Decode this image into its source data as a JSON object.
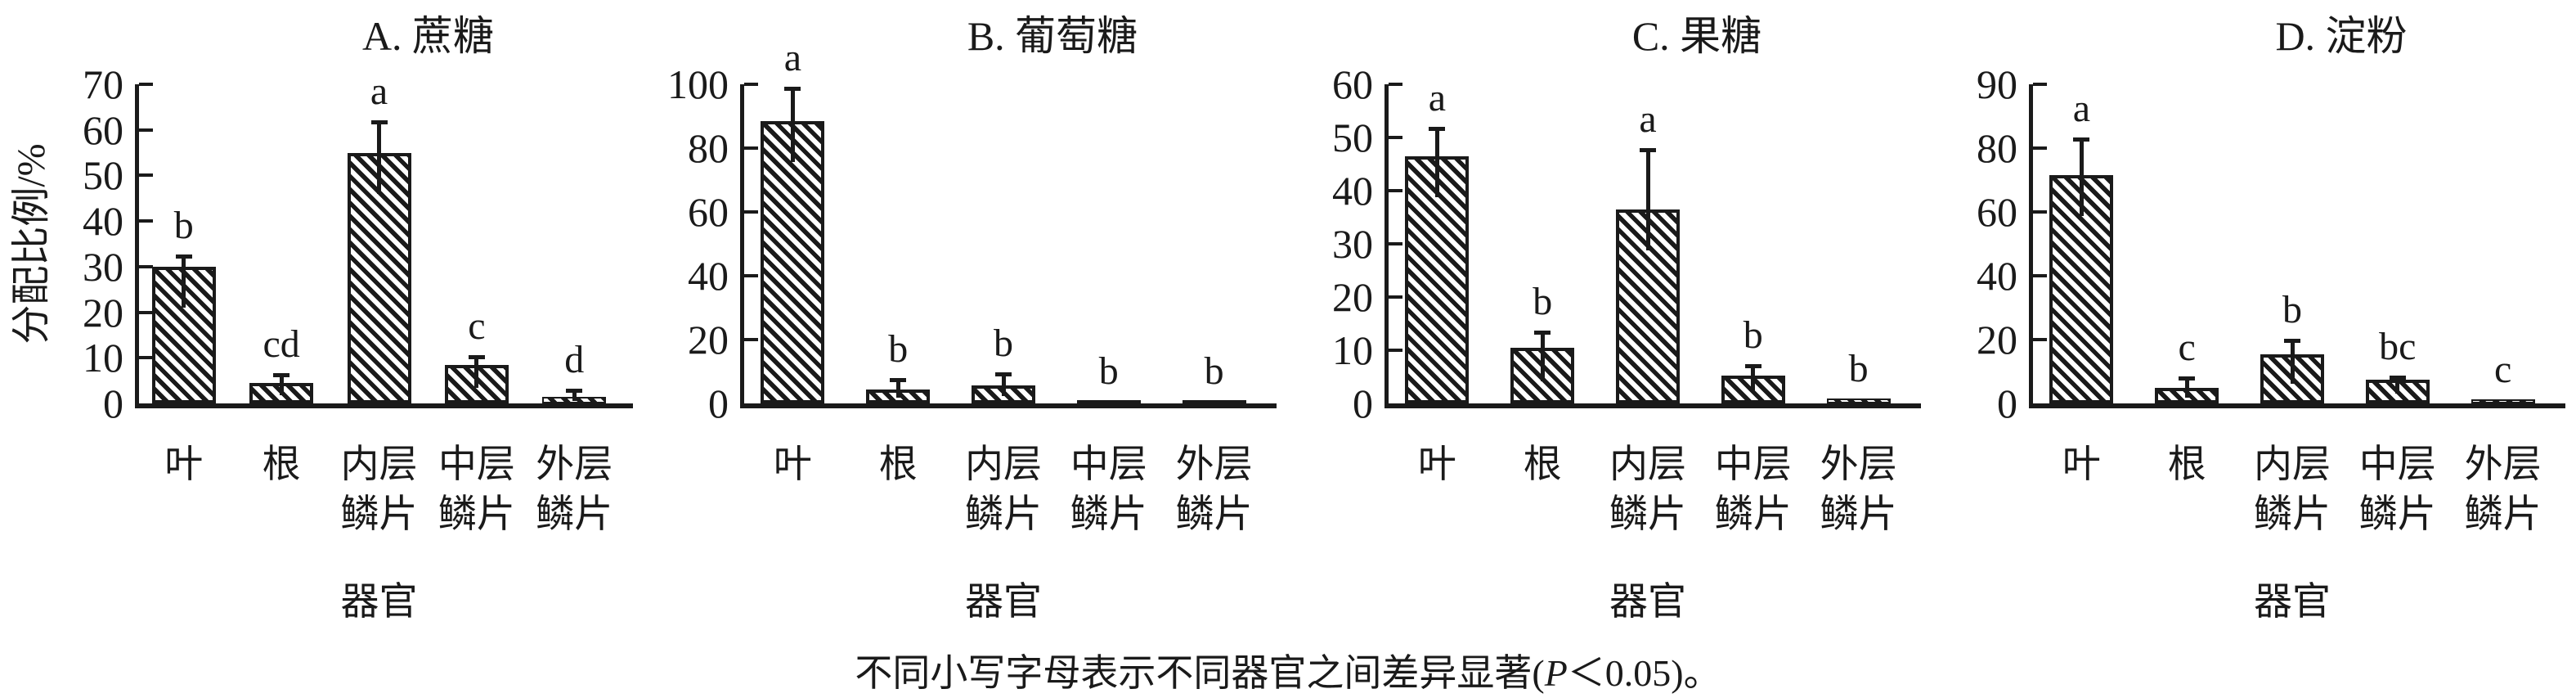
{
  "figure": {
    "background": "#ffffff",
    "ink_color": "#1a1a1a",
    "y_axis_title": "分配比例/%",
    "x_axis_title": "器官",
    "footnote_pre": "不同小写字母表示不同器官之间差异显著(",
    "footnote_italic": "P",
    "footnote_post": "＜0.05)。"
  },
  "chart_data": [
    {
      "type": "bar",
      "title": "A. 蔗糖",
      "categories": [
        "叶",
        "根",
        "内层\n鳞片",
        "中层\n鳞片",
        "外层\n鳞片"
      ],
      "values": [
        30,
        4.5,
        55,
        8.5,
        1.4
      ],
      "errors": [
        2.5,
        2,
        7,
        2,
        1.6
      ],
      "sig_letters": [
        "b",
        "cd",
        "a",
        "c",
        "d"
      ],
      "ylabel": "分配比例/%",
      "xlabel": "器官",
      "yticks": [
        0,
        10,
        20,
        30,
        40,
        50,
        60,
        70
      ],
      "ylim": [
        0,
        70
      ],
      "bar_fill": "diagonal-hatch",
      "grid": false
    },
    {
      "type": "bar",
      "title": "B. 葡萄糖",
      "categories": [
        "叶",
        "根",
        "内层\n鳞片",
        "中层\n鳞片",
        "外层\n鳞片"
      ],
      "values": [
        88.5,
        4.3,
        5.6,
        0.6,
        0.4
      ],
      "errors": [
        10.5,
        3.5,
        4,
        0,
        0
      ],
      "sig_letters": [
        "a",
        "b",
        "b",
        "b",
        "b"
      ],
      "ylabel": "",
      "xlabel": "器官",
      "yticks": [
        0,
        20,
        40,
        60,
        80,
        100
      ],
      "ylim": [
        0,
        100
      ],
      "bar_fill": "diagonal-hatch",
      "grid": false
    },
    {
      "type": "bar",
      "title": "C. 果糖",
      "categories": [
        "叶",
        "根",
        "内层\n鳞片",
        "中层\n鳞片",
        "外层\n鳞片"
      ],
      "values": [
        46.5,
        10.5,
        36.5,
        5.3,
        0.9
      ],
      "errors": [
        5.3,
        3,
        11.3,
        1.9,
        0
      ],
      "sig_letters": [
        "a",
        "b",
        "a",
        "b",
        "b"
      ],
      "ylabel": "",
      "xlabel": "器官",
      "yticks": [
        0,
        10,
        20,
        30,
        40,
        50,
        60
      ],
      "ylim": [
        0,
        60
      ],
      "bar_fill": "diagonal-hatch",
      "grid": false
    },
    {
      "type": "bar",
      "title": "D. 淀粉",
      "categories": [
        "叶",
        "根",
        "内层\n鳞片",
        "中层\n鳞片",
        "外层\n鳞片"
      ],
      "values": [
        71.5,
        4.8,
        15.5,
        7.5,
        1.2
      ],
      "errors": [
        10,
        3.5,
        4.5,
        1,
        0
      ],
      "sig_letters": [
        "a",
        "c",
        "b",
        "bc",
        "c"
      ],
      "ylabel": "",
      "xlabel": "器官",
      "yticks": [
        0,
        20,
        40,
        60,
        80,
        90
      ],
      "ylim": [
        0,
        90
      ],
      "bar_fill": "diagonal-hatch",
      "grid": false
    }
  ]
}
